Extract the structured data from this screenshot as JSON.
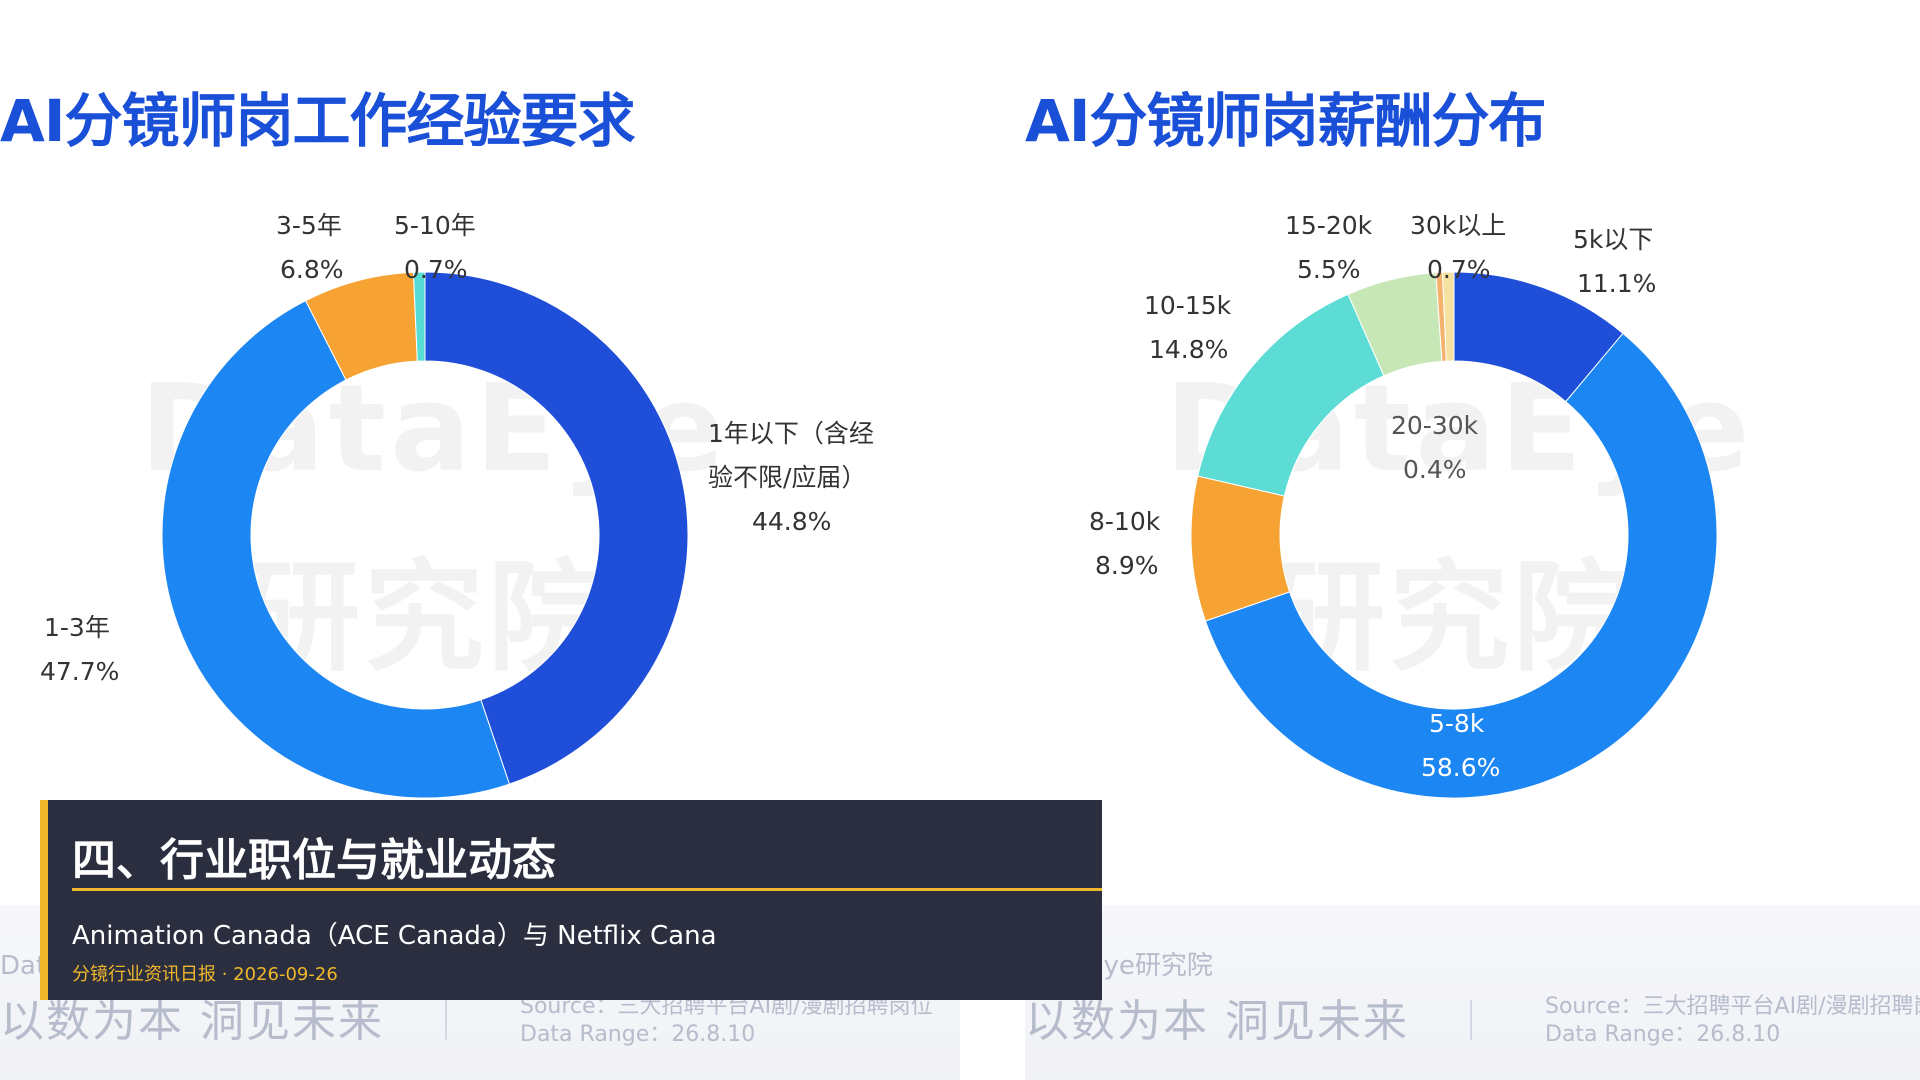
{
  "chart_data": [
    {
      "type": "pie",
      "title": "AI分镜师岗工作经验要求",
      "categories": [
        "1年以下（含经验不限/应届）",
        "1-3年",
        "3-5年",
        "5-10年"
      ],
      "values": [
        44.8,
        47.7,
        6.8,
        0.7
      ],
      "value_labels": [
        "44.8%",
        "47.7%",
        "6.8%",
        "0.7%"
      ],
      "colors": [
        "#1f4fd8",
        "#1c86f2",
        "#f6a333",
        "#56dbd5"
      ],
      "legend": "none"
    },
    {
      "type": "pie",
      "title": "AI分镜师岗薪酬分布",
      "categories": [
        "5k以下",
        "5-8k",
        "8-10k",
        "10-15k",
        "15-20k",
        "20-30k",
        "30k以上"
      ],
      "values": [
        11.1,
        58.6,
        8.9,
        14.8,
        5.5,
        0.4,
        0.7
      ],
      "value_labels": [
        "11.1%",
        "58.6%",
        "8.9%",
        "14.8%",
        "5.5%",
        "0.4%",
        "0.7%"
      ],
      "colors": [
        "#1f4fd8",
        "#1c86f2",
        "#f6a333",
        "#5ddcd5",
        "#c8e7b6",
        "#f4b26c",
        "#f5e2a0"
      ],
      "legend": "none"
    }
  ],
  "labels_left": {
    "l0": [
      "1年以下（含经",
      "验不限/应届）",
      "44.8%"
    ],
    "l1": [
      "1-3年",
      "47.7%"
    ],
    "l2": [
      "3-5年",
      "6.8%"
    ],
    "l3": [
      "5-10年",
      "0.7%"
    ]
  },
  "labels_right": {
    "r0": [
      "5k以下",
      "11.1%"
    ],
    "r1": [
      "5-8k",
      "58.6%"
    ],
    "r2": [
      "8-10k",
      "8.9%"
    ],
    "r3": [
      "10-15k",
      "14.8%"
    ],
    "r4": [
      "15-20k",
      "5.5%"
    ],
    "r5": [
      "20-30k",
      "0.4%"
    ],
    "r6": [
      "30k以上",
      "0.7%"
    ]
  },
  "footer": {
    "brand": "DataEye研究院",
    "slogan": "以数为本 洞见未来",
    "source": "Source：三大招聘平台AI剧/漫剧招聘岗位",
    "range": "Data Range：26.8.10"
  },
  "watermark": {
    "line1": "DataEye",
    "line2": "研究院"
  },
  "overlay": {
    "heading": "四、行业职位与就业动态",
    "subtitle": "Animation Canada（ACE Canada）与 Netflix Cana",
    "meta": "分镜行业资讯日报 · 2026-09-26"
  }
}
